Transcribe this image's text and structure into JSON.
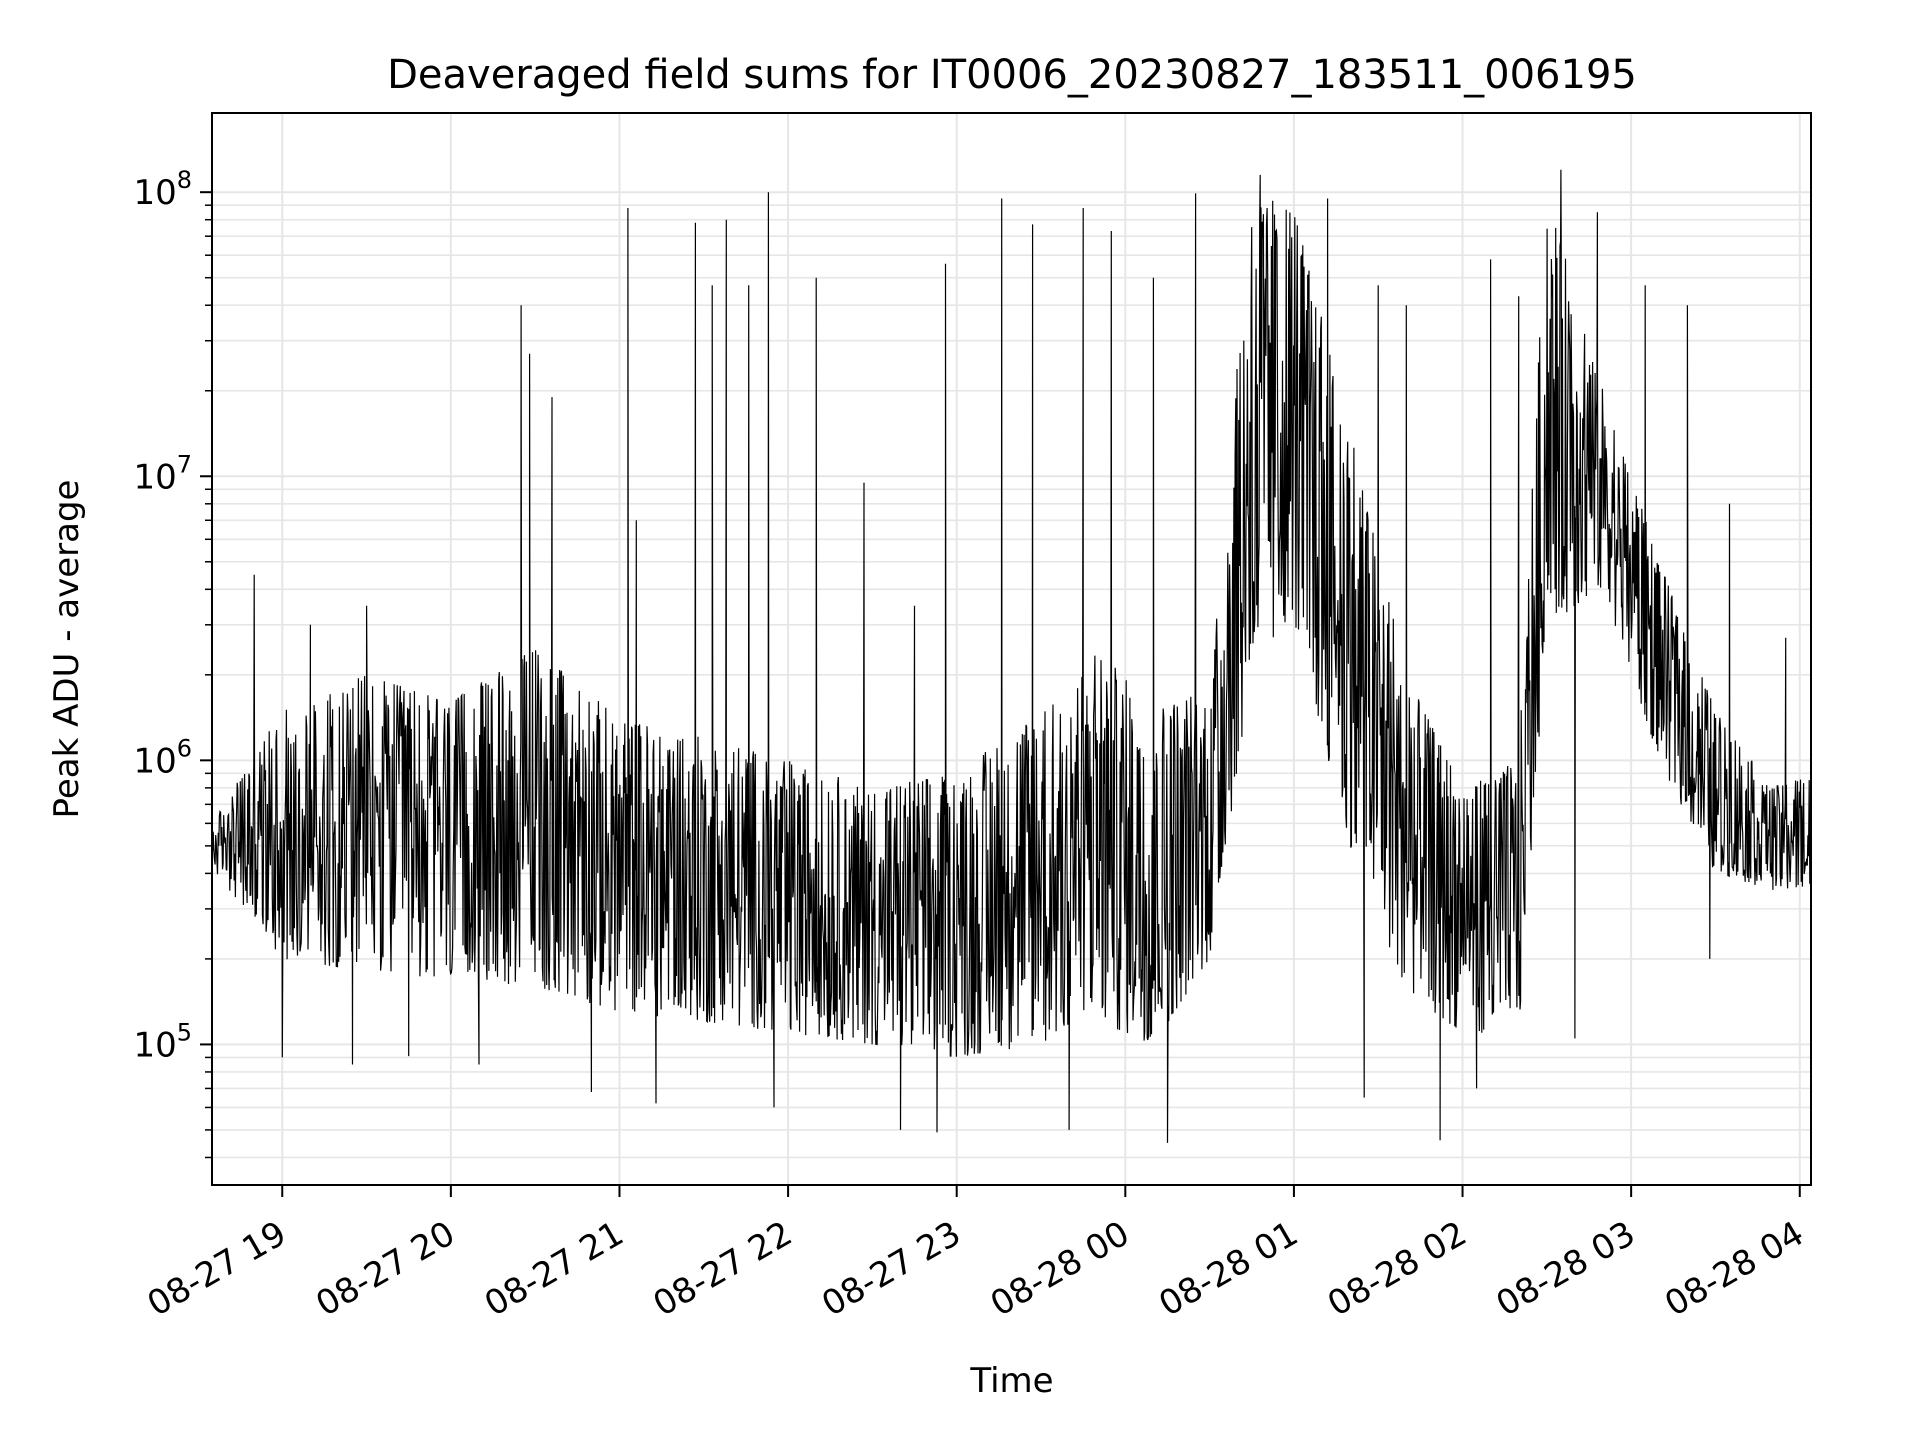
{
  "chart_data": {
    "type": "line",
    "title": "Deaveraged field sums for IT0006_20230827_183511_006195",
    "xlabel": "Time",
    "ylabel": "Peak ADU - average",
    "y_scale": "log",
    "ylim": [
      32000,
      190000000
    ],
    "xlim": [
      "2023-08-27 18:35",
      "2023-08-28 04:04"
    ],
    "x_ticks": [
      "08-27 19",
      "08-27 20",
      "08-27 21",
      "08-27 22",
      "08-27 23",
      "08-28 00",
      "08-28 01",
      "08-28 02",
      "08-28 03",
      "08-28 04"
    ],
    "y_ticks": [
      {
        "base": "10",
        "exp": "5"
      },
      {
        "base": "10",
        "exp": "6"
      },
      {
        "base": "10",
        "exp": "7"
      },
      {
        "base": "10",
        "exp": "8"
      }
    ],
    "grid": true,
    "line_color": "#000000",
    "grid_color": "#e6e6e6",
    "envelope": {
      "x": [
        "2023-08-27 18:35",
        "2023-08-27 19:00",
        "2023-08-27 19:30",
        "2023-08-27 20:00",
        "2023-08-27 20:30",
        "2023-08-27 21:00",
        "2023-08-27 21:30",
        "2023-08-27 22:00",
        "2023-08-27 22:30",
        "2023-08-27 23:00",
        "2023-08-27 23:30",
        "2023-08-27 23:50",
        "2023-08-28 00:10",
        "2023-08-28 00:30",
        "2023-08-28 00:45",
        "2023-08-28 01:00",
        "2023-08-28 01:20",
        "2023-08-28 01:40",
        "2023-08-28 02:00",
        "2023-08-28 02:20",
        "2023-08-28 02:30",
        "2023-08-28 02:50",
        "2023-08-28 03:10",
        "2023-08-28 03:30",
        "2023-08-28 03:50",
        "2023-08-28 04:04"
      ],
      "low": [
        420000,
        200000,
        180000,
        170000,
        160000,
        130000,
        120000,
        110000,
        100000,
        90000,
        100000,
        120000,
        100000,
        200000,
        2000000,
        3000000,
        500000,
        150000,
        110000,
        110000,
        3000000,
        4000000,
        1000000,
        400000,
        350000,
        350000
      ],
      "high": [
        600000,
        1500000,
        2000000,
        1600000,
        2500000,
        1400000,
        1200000,
        1000000,
        800000,
        900000,
        1500000,
        2500000,
        1500000,
        1800000,
        100000000,
        90000000,
        15000000,
        2000000,
        800000,
        1000000,
        100000000,
        20000000,
        5000000,
        1500000,
        800000,
        900000
      ]
    },
    "spikes": [
      {
        "x": "2023-08-27 18:50",
        "y": 4500000
      },
      {
        "x": "2023-08-27 19:10",
        "y": 3000000
      },
      {
        "x": "2023-08-27 19:30",
        "y": 3500000
      },
      {
        "x": "2023-08-27 20:25",
        "y": 40000000
      },
      {
        "x": "2023-08-27 20:28",
        "y": 27000000
      },
      {
        "x": "2023-08-27 20:36",
        "y": 19000000
      },
      {
        "x": "2023-08-27 21:03",
        "y": 88000000
      },
      {
        "x": "2023-08-27 21:06",
        "y": 7000000
      },
      {
        "x": "2023-08-27 21:27",
        "y": 78000000
      },
      {
        "x": "2023-08-27 21:33",
        "y": 47000000
      },
      {
        "x": "2023-08-27 21:38",
        "y": 80000000
      },
      {
        "x": "2023-08-27 21:46",
        "y": 47000000
      },
      {
        "x": "2023-08-27 21:53",
        "y": 100000000
      },
      {
        "x": "2023-08-27 22:10",
        "y": 50000000
      },
      {
        "x": "2023-08-27 22:27",
        "y": 9500000
      },
      {
        "x": "2023-08-27 22:45",
        "y": 3500000
      },
      {
        "x": "2023-08-27 22:56",
        "y": 56000000
      },
      {
        "x": "2023-08-27 23:16",
        "y": 95000000
      },
      {
        "x": "2023-08-27 23:27",
        "y": 77000000
      },
      {
        "x": "2023-08-27 23:45",
        "y": 88000000
      },
      {
        "x": "2023-08-27 23:55",
        "y": 73000000
      },
      {
        "x": "2023-08-28 00:10",
        "y": 50000000
      },
      {
        "x": "2023-08-28 00:25",
        "y": 99000000
      },
      {
        "x": "2023-08-28 00:48",
        "y": 115000000
      },
      {
        "x": "2023-08-28 01:12",
        "y": 95000000
      },
      {
        "x": "2023-08-28 01:30",
        "y": 47000000
      },
      {
        "x": "2023-08-28 01:40",
        "y": 40000000
      },
      {
        "x": "2023-08-28 02:10",
        "y": 58000000
      },
      {
        "x": "2023-08-28 02:20",
        "y": 43000000
      },
      {
        "x": "2023-08-28 02:35",
        "y": 120000000
      },
      {
        "x": "2023-08-28 02:48",
        "y": 85000000
      },
      {
        "x": "2023-08-28 03:05",
        "y": 47000000
      },
      {
        "x": "2023-08-28 03:20",
        "y": 40000000
      },
      {
        "x": "2023-08-28 03:35",
        "y": 8000000
      },
      {
        "x": "2023-08-28 03:55",
        "y": 2700000
      }
    ],
    "dips": [
      {
        "x": "2023-08-27 19:00",
        "y": 90000
      },
      {
        "x": "2023-08-27 19:25",
        "y": 85000
      },
      {
        "x": "2023-08-27 19:45",
        "y": 91000
      },
      {
        "x": "2023-08-27 20:10",
        "y": 85000
      },
      {
        "x": "2023-08-27 20:50",
        "y": 68000
      },
      {
        "x": "2023-08-27 21:13",
        "y": 62000
      },
      {
        "x": "2023-08-27 21:55",
        "y": 60000
      },
      {
        "x": "2023-08-27 22:40",
        "y": 50000
      },
      {
        "x": "2023-08-27 22:53",
        "y": 49000
      },
      {
        "x": "2023-08-27 23:40",
        "y": 50000
      },
      {
        "x": "2023-08-28 00:15",
        "y": 45000
      },
      {
        "x": "2023-08-28 01:25",
        "y": 65000
      },
      {
        "x": "2023-08-28 01:52",
        "y": 46000
      },
      {
        "x": "2023-08-28 02:05",
        "y": 70000
      },
      {
        "x": "2023-08-28 02:40",
        "y": 105000
      },
      {
        "x": "2023-08-28 03:28",
        "y": 200000
      }
    ]
  }
}
